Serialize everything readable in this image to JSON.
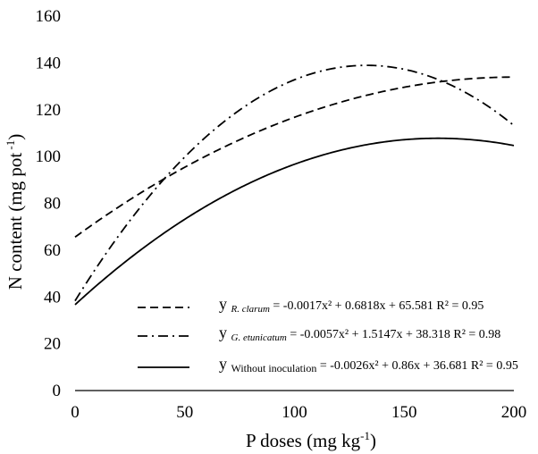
{
  "chart_data": {
    "type": "line",
    "xlabel_main": "P doses (mg kg",
    "xlabel_sup": "-1",
    "xlabel_tail": ")",
    "ylabel_main": "N content (mg pot",
    "ylabel_sup": " -1",
    "ylabel_tail": ")",
    "xlim": [
      0,
      200
    ],
    "ylim": [
      0,
      160
    ],
    "xticks": [
      0,
      50,
      100,
      150,
      200
    ],
    "yticks": [
      0,
      20,
      40,
      60,
      80,
      100,
      120,
      140,
      160
    ],
    "xtick_labels": [
      "0",
      "50",
      "100",
      "150",
      "200"
    ],
    "ytick_labels": [
      "0",
      "20",
      "40",
      "60",
      "80",
      "100",
      "120",
      "140",
      "160"
    ],
    "grid": false,
    "legend_position": "bottom-right",
    "series": [
      {
        "id": "r-clarum",
        "subscript": "R. clarum",
        "italic_subscript": true,
        "equation": "= -0.0017x² + 0.6818x + 65.581 R² = 0.95",
        "coeffs": [
          -0.0017,
          0.6818,
          65.581
        ],
        "line_style": "dashed",
        "color": "#000000"
      },
      {
        "id": "g-etunicatum",
        "subscript": "G. etunicatum",
        "italic_subscript": true,
        "equation": "= -0.0057x² + 1.5147x + 38.318 R² = 0.98",
        "coeffs": [
          -0.0057,
          1.5147,
          38.318
        ],
        "line_style": "dash-dot",
        "color": "#000000"
      },
      {
        "id": "without-inoculation",
        "subscript": "Without inoculation",
        "italic_subscript": false,
        "equation": "= -0.0026x² + 0.86x + 36.681 R² = 0.95",
        "coeffs": [
          -0.0026,
          0.86,
          36.681
        ],
        "line_style": "solid",
        "color": "#000000"
      }
    ]
  }
}
